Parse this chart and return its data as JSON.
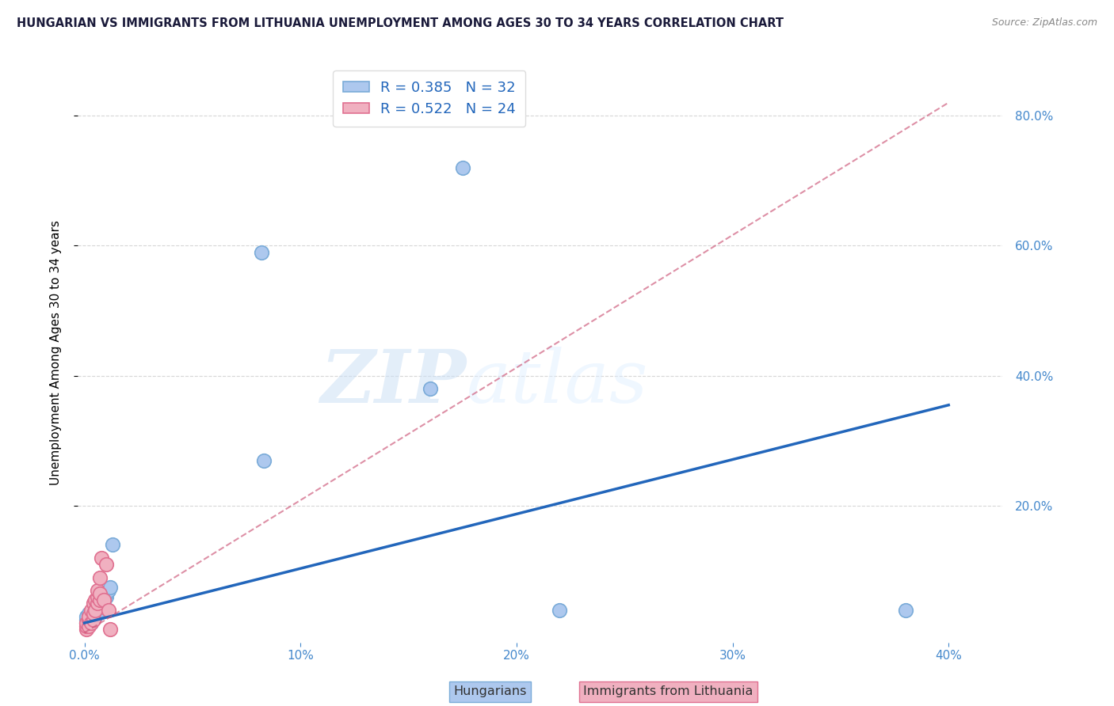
{
  "title": "HUNGARIAN VS IMMIGRANTS FROM LITHUANIA UNEMPLOYMENT AMONG AGES 30 TO 34 YEARS CORRELATION CHART",
  "source": "Source: ZipAtlas.com",
  "ylabel": "Unemployment Among Ages 30 to 34 years",
  "watermark_zip": "ZIP",
  "watermark_atlas": "atlas",
  "legend_r1": "R = 0.385",
  "legend_n1": "N = 32",
  "legend_r2": "R = 0.522",
  "legend_n2": "N = 24",
  "xlim": [
    -0.003,
    0.425
  ],
  "ylim": [
    -0.01,
    0.88
  ],
  "xticks": [
    0.0,
    0.1,
    0.2,
    0.3,
    0.4
  ],
  "yticks": [
    0.2,
    0.4,
    0.6,
    0.8
  ],
  "blue_scatter_color": "#adc8ee",
  "blue_scatter_edge": "#7aabd8",
  "pink_scatter_color": "#f0b0c0",
  "pink_scatter_edge": "#e07090",
  "blue_line_color": "#2266bb",
  "pink_line_color": "#cc5577",
  "axis_tick_color": "#4488cc",
  "grid_color": "#cccccc",
  "title_color": "#1a1a3a",
  "legend_text_color": "#2266bb",
  "hungarians_x": [
    0.001,
    0.001,
    0.001,
    0.002,
    0.002,
    0.002,
    0.003,
    0.003,
    0.003,
    0.004,
    0.004,
    0.005,
    0.005,
    0.006,
    0.006,
    0.006,
    0.007,
    0.007,
    0.008,
    0.008,
    0.009,
    0.01,
    0.01,
    0.011,
    0.012,
    0.013,
    0.082,
    0.083,
    0.16,
    0.175,
    0.22,
    0.38
  ],
  "hungarians_y": [
    0.02,
    0.025,
    0.03,
    0.02,
    0.03,
    0.035,
    0.02,
    0.025,
    0.035,
    0.03,
    0.04,
    0.03,
    0.04,
    0.035,
    0.04,
    0.05,
    0.04,
    0.05,
    0.045,
    0.055,
    0.05,
    0.06,
    0.065,
    0.07,
    0.075,
    0.14,
    0.59,
    0.27,
    0.38,
    0.72,
    0.04,
    0.04
  ],
  "lithuania_x": [
    0.001,
    0.001,
    0.001,
    0.002,
    0.002,
    0.002,
    0.003,
    0.003,
    0.004,
    0.004,
    0.004,
    0.005,
    0.005,
    0.006,
    0.006,
    0.006,
    0.007,
    0.007,
    0.007,
    0.008,
    0.009,
    0.01,
    0.011,
    0.012
  ],
  "lithuania_y": [
    0.01,
    0.015,
    0.02,
    0.015,
    0.025,
    0.03,
    0.02,
    0.04,
    0.025,
    0.035,
    0.05,
    0.04,
    0.055,
    0.05,
    0.06,
    0.07,
    0.055,
    0.065,
    0.09,
    0.12,
    0.055,
    0.11,
    0.04,
    0.01
  ],
  "blue_line_x": [
    0.0,
    0.4
  ],
  "blue_line_y": [
    0.02,
    0.355
  ],
  "pink_line_x": [
    0.0,
    0.4
  ],
  "pink_line_y": [
    0.005,
    0.82
  ]
}
